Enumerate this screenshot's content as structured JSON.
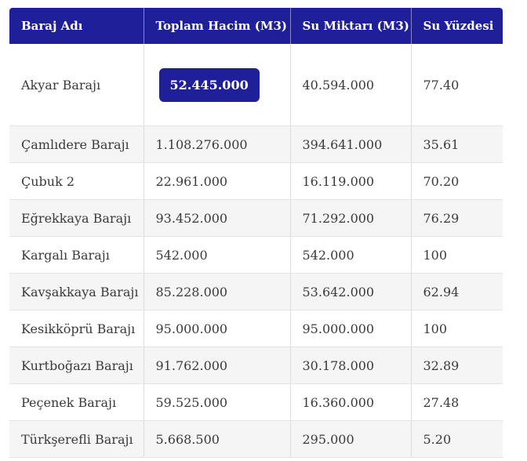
{
  "table": {
    "headers": [
      "Baraj Adı",
      "Toplam Hacim (M3)",
      "Su Miktarı (M3)",
      "Su Yüzdesi"
    ],
    "rows": [
      [
        "Akyar Barajı",
        "52.445.000",
        "40.594.000",
        "77.40"
      ],
      [
        "Çamlıdere Barajı",
        "1.108.276.000",
        "394.641.000",
        "35.61"
      ],
      [
        "Çubuk 2",
        "22.961.000",
        "16.119.000",
        "70.20"
      ],
      [
        "Eğrekkaya Barajı",
        "93.452.000",
        "71.292.000",
        "76.29"
      ],
      [
        "Kargalı Barajı",
        "542.000",
        "542.000",
        "100"
      ],
      [
        "Kavşakkaya Barajı",
        "85.228.000",
        "53.642.000",
        "62.94"
      ],
      [
        "Kesikköprü Barajı",
        "95.000.000",
        "95.000.000",
        "100"
      ],
      [
        "Kurtboğazı Barajı",
        "91.762.000",
        "30.178.000",
        "32.89"
      ],
      [
        "Peçenek Barajı",
        "59.525.000",
        "16.360.000",
        "27.48"
      ],
      [
        "Türkşerefli Barajı",
        "5.668.500",
        "295.000",
        "5.20"
      ]
    ],
    "highlighted_cell": "Akyar Barajı total volume"
  },
  "colors": {
    "header_bg": "#1f1f9a",
    "badge_bg": "#1f1f9a",
    "row_alt_bg": "#f5f5f5"
  }
}
